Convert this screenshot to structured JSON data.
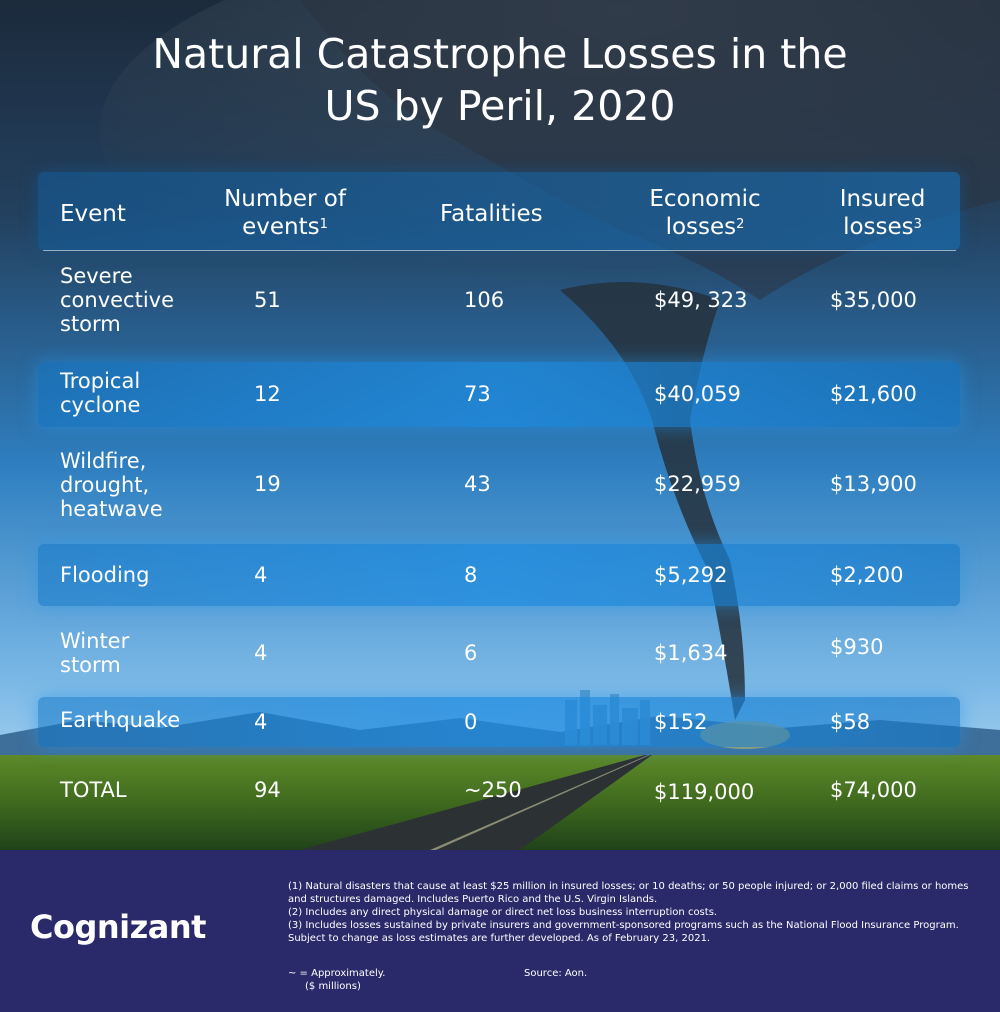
{
  "title": {
    "line1": "Natural Catastrophe Losses in the",
    "line2": "US by Peril, 2020"
  },
  "chart_data": {
    "type": "table",
    "title": "Natural Catastrophe Losses in the US by Peril, 2020",
    "columns": [
      {
        "label": "Event",
        "sup": ""
      },
      {
        "label": "Number of events",
        "line1": "Number of",
        "line2": "events",
        "sup": "1"
      },
      {
        "label": "Fatalities",
        "sup": ""
      },
      {
        "label": "Economic losses",
        "line1": "Economic",
        "line2": "losses",
        "sup": "2"
      },
      {
        "label": "Insured losses",
        "line1": "Insured",
        "line2": "losses",
        "sup": "3"
      }
    ],
    "rows": [
      {
        "event": [
          "Severe",
          "convective",
          "storm"
        ],
        "events": "51",
        "fatalities": "106",
        "economic": "$49, 323",
        "insured": "$35,000"
      },
      {
        "event": [
          "Tropical",
          "cyclone"
        ],
        "events": "12",
        "fatalities": "73",
        "economic": "$40,059",
        "insured": "$21,600"
      },
      {
        "event": [
          "Wildfire,",
          "drought,",
          "heatwave"
        ],
        "events": "19",
        "fatalities": "43",
        "economic": "$22,959",
        "insured": "$13,900"
      },
      {
        "event": [
          "Flooding"
        ],
        "events": "4",
        "fatalities": "8",
        "economic": "$5,292",
        "insured": "$2,200"
      },
      {
        "event": [
          "Winter",
          "storm"
        ],
        "events": "4",
        "fatalities": "6",
        "economic": "$1,634",
        "insured": "$930"
      },
      {
        "event": [
          "Earthquake"
        ],
        "events": "4",
        "fatalities": "0",
        "economic": "$152",
        "insured": "$58"
      }
    ],
    "total": {
      "event": "TOTAL",
      "events": "94",
      "fatalities": "~250",
      "economic": "$119,000",
      "insured": "$74,000"
    },
    "units": "($ millions)"
  },
  "footer": {
    "logo": "Cognizant",
    "notes": [
      "(1) Natural disasters that cause at least $25 million in insured losses; or 10 deaths; or 50 people injured; or 2,000 filed claims or homes and structures damaged. Includes Puerto Rico and the U.S. Virgin Islands.",
      "(2) Includes any direct physical damage or direct net loss business interruption costs.",
      "(3) Includes losses sustained by private insurers and government-sponsored programs such as the National Flood Insurance Program. Subject to change as loss estimates are further developed. As of February 23, 2021."
    ],
    "approx": "~ = Approximately.",
    "units": "($ millions)",
    "source": "Source: Aon."
  },
  "colors": {
    "footer_bg": "#2a2a6a",
    "text": "#ffffff",
    "band": "#1e8ce1"
  }
}
